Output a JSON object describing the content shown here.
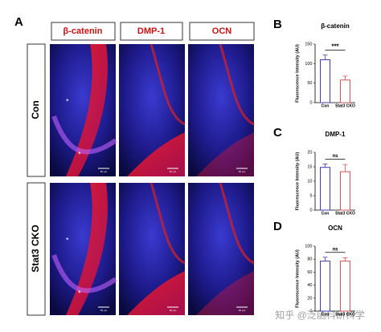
{
  "panel_labels": [
    "A",
    "B",
    "C",
    "D"
  ],
  "column_headers": [
    "β-catenin",
    "DMP-1",
    "OCN"
  ],
  "row_labels": [
    "Con",
    "Stat3 CKO"
  ],
  "scale_bar_label": "50 μm",
  "image_marker": "*",
  "watermark": "知乎 @泛函科研科学",
  "chart_data": [
    {
      "type": "bar",
      "title": "β-catenin",
      "y_label": "Fluorescence Intensity (AU)",
      "categories": [
        "Con",
        "Stat3 CKO"
      ],
      "values": [
        110,
        58
      ],
      "errors": [
        12,
        10
      ],
      "colors": [
        "#3b3bb0",
        "#d9534f"
      ],
      "ylim": [
        0,
        150
      ],
      "yticks": [
        0,
        50,
        100,
        150
      ],
      "significance": "***"
    },
    {
      "type": "bar",
      "title": "DMP-1",
      "y_label": "Fluorescence Intensity (AU)",
      "categories": [
        "Con",
        "Stat3 CKO"
      ],
      "values": [
        14.8,
        13.3
      ],
      "errors": [
        1.2,
        2.5
      ],
      "colors": [
        "#3b3bb0",
        "#d9534f"
      ],
      "ylim": [
        0,
        20
      ],
      "yticks": [
        0,
        5,
        10,
        15,
        20
      ],
      "significance": "ns"
    },
    {
      "type": "bar",
      "title": "OCN",
      "y_label": "Fluorescence Intensity (AU)",
      "categories": [
        "Con",
        "Stat3 CKO"
      ],
      "values": [
        77,
        77
      ],
      "errors": [
        6,
        5
      ],
      "colors": [
        "#3b3bb0",
        "#d9534f"
      ],
      "ylim": [
        0,
        100
      ],
      "yticks": [
        0,
        20,
        40,
        60,
        80,
        100
      ],
      "significance": "ns"
    }
  ]
}
